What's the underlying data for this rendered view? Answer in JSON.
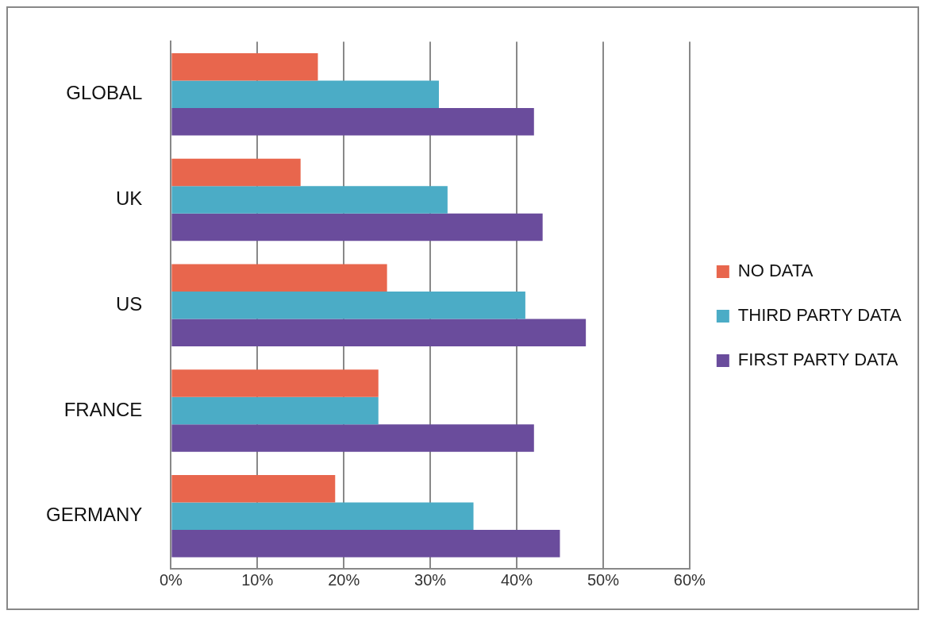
{
  "chart_data": {
    "type": "bar",
    "orientation": "horizontal",
    "categories": [
      "GLOBAL",
      "UK",
      "US",
      "FRANCE",
      "GERMANY"
    ],
    "series": [
      {
        "name": "NO DATA",
        "color": "#e8664d",
        "values": [
          17,
          15,
          25,
          24,
          19
        ]
      },
      {
        "name": "THIRD PARTY DATA",
        "color": "#4bacc6",
        "values": [
          31,
          32,
          41,
          24,
          35
        ]
      },
      {
        "name": "FIRST PARTY DATA",
        "color": "#6a4c9c",
        "values": [
          42,
          43,
          48,
          42,
          45
        ]
      }
    ],
    "xlim": [
      0,
      60
    ],
    "xticks": [
      {
        "value": 0,
        "label": "0%"
      },
      {
        "value": 10,
        "label": "10%"
      },
      {
        "value": 20,
        "label": "20%"
      },
      {
        "value": 30,
        "label": "30%"
      },
      {
        "value": 40,
        "label": "40%"
      },
      {
        "value": 50,
        "label": "50%"
      },
      {
        "value": 60,
        "label": "60%"
      }
    ],
    "grid": "x",
    "legend": "right"
  }
}
